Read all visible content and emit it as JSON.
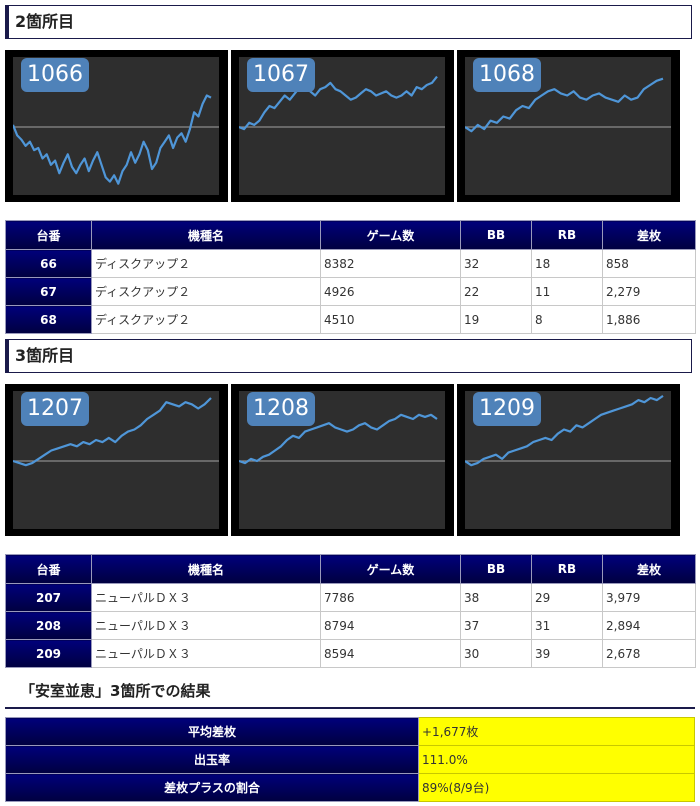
{
  "section1": {
    "title": "2箇所目",
    "charts": [
      {
        "label": "1066",
        "color": "#4f96d8",
        "values": [
          2,
          -8,
          -12,
          -18,
          -14,
          -22,
          -20,
          -30,
          -26,
          -36,
          -32,
          -44,
          -34,
          -26,
          -38,
          -44,
          -36,
          -30,
          -42,
          -32,
          -24,
          -36,
          -48,
          -52,
          -46,
          -54,
          -42,
          -36,
          -24,
          -34,
          -26,
          -14,
          -22,
          -40,
          -34,
          -20,
          -14,
          -8,
          -20,
          -10,
          -6,
          -14,
          -2,
          14,
          10,
          22,
          30,
          28
        ]
      },
      {
        "label": "1067",
        "color": "#4f96d8",
        "values": [
          0,
          -2,
          4,
          2,
          6,
          14,
          20,
          18,
          24,
          30,
          26,
          32,
          38,
          40,
          34,
          30,
          36,
          38,
          42,
          36,
          34,
          30,
          26,
          28,
          32,
          36,
          34,
          30,
          32,
          34,
          30,
          28,
          30,
          34,
          30,
          38,
          36,
          40,
          42,
          48
        ]
      },
      {
        "label": "1068",
        "color": "#4f96d8",
        "values": [
          0,
          -4,
          2,
          -2,
          6,
          4,
          10,
          8,
          16,
          20,
          18,
          26,
          30,
          34,
          36,
          32,
          30,
          34,
          28,
          26,
          30,
          32,
          28,
          26,
          24,
          30,
          26,
          28,
          36,
          40,
          44,
          46
        ]
      }
    ],
    "table": {
      "headers": [
        "台番",
        "機種名",
        "ゲーム数",
        "BB",
        "RB",
        "差枚"
      ],
      "rows": [
        [
          "66",
          "ディスクアップ２",
          "8382",
          "32",
          "18",
          "858"
        ],
        [
          "67",
          "ディスクアップ２",
          "4926",
          "22",
          "11",
          "2,279"
        ],
        [
          "68",
          "ディスクアップ２",
          "4510",
          "19",
          "8",
          "1,886"
        ]
      ]
    }
  },
  "section2": {
    "title": "3箇所目",
    "charts": [
      {
        "label": "1207",
        "color": "#4f96d8",
        "values": [
          0,
          -2,
          -4,
          -2,
          2,
          6,
          10,
          12,
          14,
          16,
          14,
          18,
          16,
          20,
          18,
          22,
          18,
          24,
          28,
          30,
          34,
          40,
          44,
          48,
          56,
          54,
          52,
          56,
          54,
          50,
          54,
          60
        ]
      },
      {
        "label": "1208",
        "color": "#4f96d8",
        "values": [
          0,
          -2,
          2,
          0,
          4,
          6,
          10,
          14,
          20,
          24,
          22,
          28,
          30,
          32,
          34,
          36,
          32,
          30,
          28,
          30,
          34,
          36,
          32,
          30,
          34,
          38,
          40,
          44,
          42,
          40,
          44,
          42,
          44,
          40
        ]
      },
      {
        "label": "1209",
        "color": "#4f96d8",
        "values": [
          0,
          -4,
          -2,
          2,
          4,
          6,
          2,
          8,
          10,
          12,
          14,
          18,
          20,
          22,
          20,
          26,
          30,
          28,
          34,
          32,
          36,
          40,
          44,
          46,
          48,
          50,
          52,
          54,
          58,
          56,
          60,
          58,
          62
        ]
      }
    ],
    "table": {
      "headers": [
        "台番",
        "機種名",
        "ゲーム数",
        "BB",
        "RB",
        "差枚"
      ],
      "rows": [
        [
          "207",
          "ニューパルＤＸ３",
          "7786",
          "38",
          "29",
          "3,979"
        ],
        [
          "208",
          "ニューパルＤＸ３",
          "8794",
          "37",
          "31",
          "2,894"
        ],
        [
          "209",
          "ニューパルＤＸ３",
          "8594",
          "30",
          "39",
          "2,678"
        ]
      ]
    }
  },
  "result": {
    "title": "「安室並恵」3箇所での結果",
    "rows": [
      {
        "label": "平均差枚",
        "value": "+1,677枚"
      },
      {
        "label": "出玉率",
        "value": "111.0%"
      },
      {
        "label": "差枚プラスの割合",
        "value": "89%(8/9台)"
      }
    ]
  },
  "colors": {
    "header_bg": "#000060",
    "highlight": "#ffff00",
    "chart_line": "#4f96d8"
  }
}
